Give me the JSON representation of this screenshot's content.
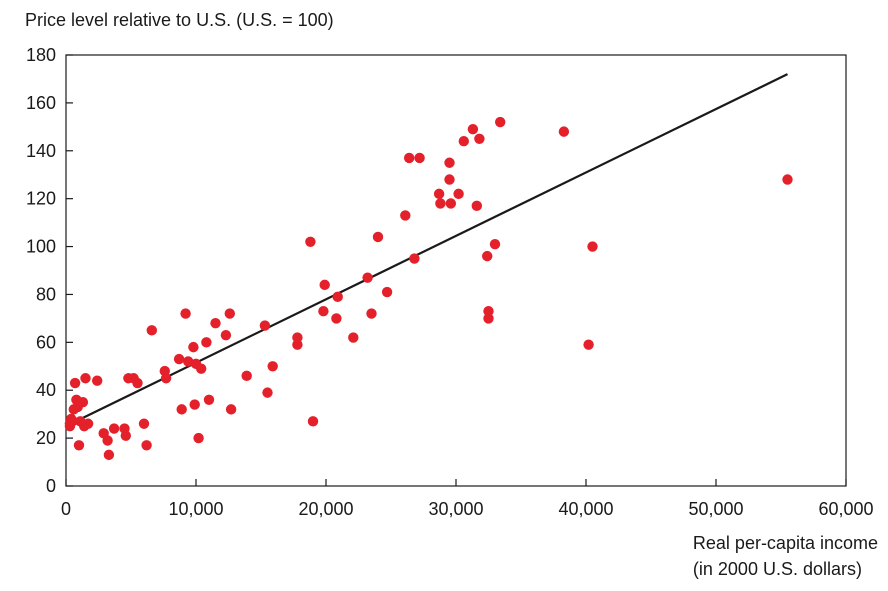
{
  "chart_data": {
    "type": "scatter",
    "title": "",
    "ylabel": "Price level relative to U.S. (U.S. = 100)",
    "xlabel_lines": [
      "Real per-capita income",
      "(in 2000 U.S. dollars)"
    ],
    "xlim": [
      0,
      60000
    ],
    "ylim": [
      0,
      180
    ],
    "x_ticks": [
      0,
      10000,
      20000,
      30000,
      40000,
      50000,
      60000
    ],
    "x_tick_labels": [
      "0",
      "10,000",
      "20,000",
      "30,000",
      "40,000",
      "50,000",
      "60,000"
    ],
    "y_ticks": [
      0,
      20,
      40,
      60,
      80,
      100,
      120,
      140,
      160,
      180
    ],
    "y_tick_labels": [
      "0",
      "20",
      "40",
      "60",
      "80",
      "100",
      "120",
      "140",
      "160",
      "180"
    ],
    "grid": false,
    "point_color": "#e4202a",
    "line_color": "#1a1a1a",
    "trend_line": {
      "x": [
        0,
        55500
      ],
      "y": [
        25,
        172
      ]
    },
    "points": [
      [
        300,
        26
      ],
      [
        300,
        25
      ],
      [
        400,
        28
      ],
      [
        500,
        27
      ],
      [
        600,
        32
      ],
      [
        700,
        43
      ],
      [
        800,
        36
      ],
      [
        900,
        33
      ],
      [
        1000,
        17
      ],
      [
        1100,
        27
      ],
      [
        1300,
        35
      ],
      [
        1400,
        25
      ],
      [
        1500,
        45
      ],
      [
        1700,
        26
      ],
      [
        2400,
        44
      ],
      [
        2900,
        22
      ],
      [
        3200,
        19
      ],
      [
        3300,
        13
      ],
      [
        3700,
        24
      ],
      [
        4500,
        24
      ],
      [
        4600,
        21
      ],
      [
        4800,
        45
      ],
      [
        5200,
        45
      ],
      [
        5500,
        43
      ],
      [
        6000,
        26
      ],
      [
        6200,
        17
      ],
      [
        6600,
        65
      ],
      [
        7600,
        48
      ],
      [
        7700,
        45
      ],
      [
        8700,
        53
      ],
      [
        8900,
        32
      ],
      [
        9200,
        72
      ],
      [
        9400,
        52
      ],
      [
        9800,
        58
      ],
      [
        9900,
        34
      ],
      [
        10000,
        51
      ],
      [
        10200,
        20
      ],
      [
        10400,
        49
      ],
      [
        10800,
        60
      ],
      [
        11000,
        36
      ],
      [
        11500,
        68
      ],
      [
        12300,
        63
      ],
      [
        12600,
        72
      ],
      [
        12700,
        32
      ],
      [
        13900,
        46
      ],
      [
        15300,
        67
      ],
      [
        15500,
        39
      ],
      [
        15900,
        50
      ],
      [
        17800,
        59
      ],
      [
        17800,
        62
      ],
      [
        18800,
        102
      ],
      [
        19000,
        27
      ],
      [
        19800,
        73
      ],
      [
        19900,
        84
      ],
      [
        20800,
        70
      ],
      [
        20900,
        79
      ],
      [
        22100,
        62
      ],
      [
        23200,
        87
      ],
      [
        23500,
        72
      ],
      [
        24000,
        104
      ],
      [
        24700,
        81
      ],
      [
        26100,
        113
      ],
      [
        26400,
        137
      ],
      [
        26800,
        95
      ],
      [
        27200,
        137
      ],
      [
        28700,
        122
      ],
      [
        28800,
        118
      ],
      [
        29500,
        135
      ],
      [
        29500,
        128
      ],
      [
        29600,
        118
      ],
      [
        30200,
        122
      ],
      [
        30600,
        144
      ],
      [
        31300,
        149
      ],
      [
        31600,
        117
      ],
      [
        31800,
        145
      ],
      [
        32400,
        96
      ],
      [
        32500,
        73
      ],
      [
        32500,
        70
      ],
      [
        33000,
        101
      ],
      [
        33400,
        152
      ],
      [
        38300,
        148
      ],
      [
        40200,
        59
      ],
      [
        40500,
        100
      ],
      [
        55500,
        128
      ]
    ]
  }
}
